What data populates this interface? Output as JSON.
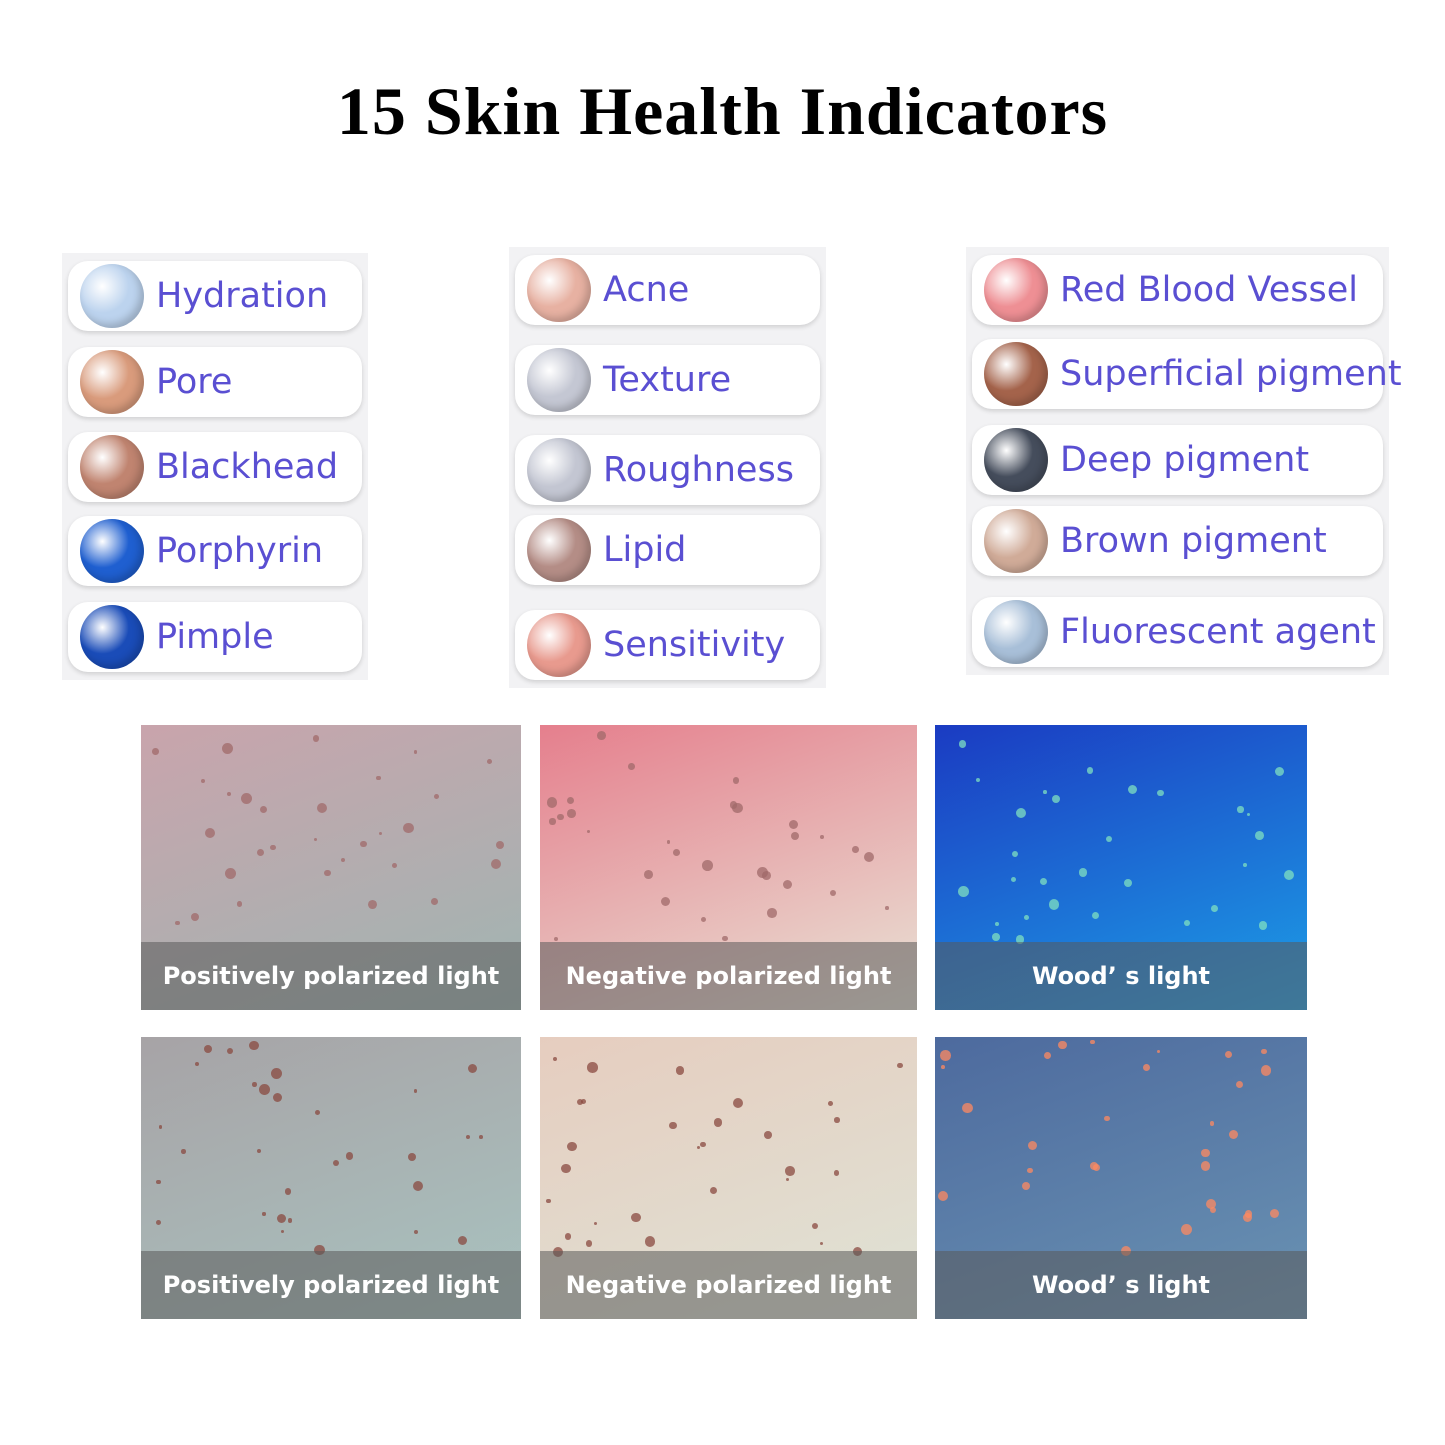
{
  "title": "15 Skin Health Indicators",
  "indicators": {
    "col1": [
      {
        "label": "Hydration",
        "color": "#bcd3ee"
      },
      {
        "label": "Pore",
        "color": "#d99b7c"
      },
      {
        "label": "Blackhead",
        "color": "#c08470"
      },
      {
        "label": "Porphyrin",
        "color": "#1f5fd0"
      },
      {
        "label": "Pimple",
        "color": "#1a4cb8"
      }
    ],
    "col2": [
      {
        "label": "Acne",
        "color": "#e7b1a2"
      },
      {
        "label": "Texture",
        "color": "#c4c7d3"
      },
      {
        "label": "Roughness",
        "color": "#c3c6d2"
      },
      {
        "label": "Lipid",
        "color": "#b48d86"
      },
      {
        "label": "Sensitivity",
        "color": "#e89a8e"
      }
    ],
    "col3": [
      {
        "label": "Red Blood Vessel",
        "color": "#ee8f94"
      },
      {
        "label": "Superficial pigment",
        "color": "#a4634b"
      },
      {
        "label": "Deep pigment",
        "color": "#454d5c"
      },
      {
        "label": "Brown pigment",
        "color": "#d0ab98"
      },
      {
        "label": "Fluorescent agent",
        "color": "#a8bfd8"
      }
    ]
  },
  "text_color": "#5a4fd2",
  "photos": [
    {
      "caption": "Positively polarized light",
      "colors": [
        "#c9a4ac",
        "#9fb5b2"
      ]
    },
    {
      "caption": "Negative polarized light",
      "colors": [
        "#e57f8d",
        "#e9e3d6"
      ]
    },
    {
      "caption": "Wood’ s light",
      "colors": [
        "#1b3bc2",
        "#1d9ee6"
      ]
    },
    {
      "caption": "Positively polarized light",
      "colors": [
        "#a7a3a6",
        "#a9c3c0"
      ]
    },
    {
      "caption": "Negative polarized light",
      "colors": [
        "#e6cdbf",
        "#dfe3d6"
      ]
    },
    {
      "caption": "Wood’ s light",
      "colors": [
        "#4d6a9e",
        "#6a93b3"
      ]
    }
  ]
}
